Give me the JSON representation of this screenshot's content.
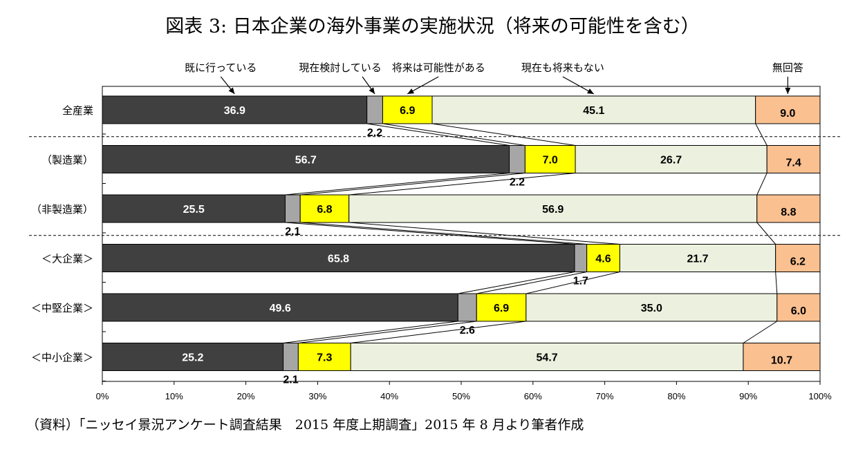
{
  "title": "図表 3:  日本企業の海外事業の実施状況（将来の可能性を含む）",
  "source": "（資料）「ニッセイ景況アンケート調査結果　2015 年度上期調査」2015 年 8 月より筆者作成",
  "chart_data": {
    "type": "bar",
    "orientation": "horizontal",
    "stacked": true,
    "percent": true,
    "categories": [
      "全産業",
      "（製造業）",
      "（非製造業）",
      "＜大企業＞",
      "＜中堅企業＞",
      "＜中小企業＞"
    ],
    "series": [
      {
        "name": "既に行っている",
        "color": "#404040",
        "values": [
          36.9,
          56.7,
          25.5,
          65.8,
          49.6,
          25.2
        ]
      },
      {
        "name": "現在検討している",
        "color": "#a6a6a6",
        "values": [
          2.2,
          2.2,
          2.1,
          1.7,
          2.6,
          2.1
        ]
      },
      {
        "name": "将来は可能性がある",
        "color": "#ffff00",
        "values": [
          6.9,
          7.0,
          6.8,
          4.6,
          6.9,
          7.3
        ]
      },
      {
        "name": "現在も将来もない",
        "color": "#ebf1de",
        "values": [
          45.1,
          26.7,
          56.9,
          21.7,
          35.0,
          54.7
        ]
      },
      {
        "name": "無回答",
        "color": "#fac090",
        "values": [
          9.0,
          7.4,
          8.8,
          6.2,
          6.0,
          10.7
        ]
      }
    ],
    "value_labels": [
      [
        "36.9",
        "2.2",
        "6.9",
        "45.1",
        "9.0"
      ],
      [
        "56.7",
        "2.2",
        "7.0",
        "26.7",
        "7.4"
      ],
      [
        "25.5",
        "2.1",
        "6.8",
        "56.9",
        "8.8"
      ],
      [
        "65.8",
        "1.7",
        "4.6",
        "21.7",
        "6.2"
      ],
      [
        "49.6",
        "2.6",
        "6.9",
        "35.0",
        "6.0"
      ],
      [
        "25.2",
        "2.1",
        "7.3",
        "54.7",
        "10.7"
      ]
    ],
    "x_ticks": [
      "0%",
      "10%",
      "20%",
      "30%",
      "40%",
      "50%",
      "60%",
      "70%",
      "80%",
      "90%",
      "100%"
    ],
    "xlim": [
      0,
      100
    ],
    "legend_position": "top",
    "separators_after": [
      0,
      2
    ]
  }
}
